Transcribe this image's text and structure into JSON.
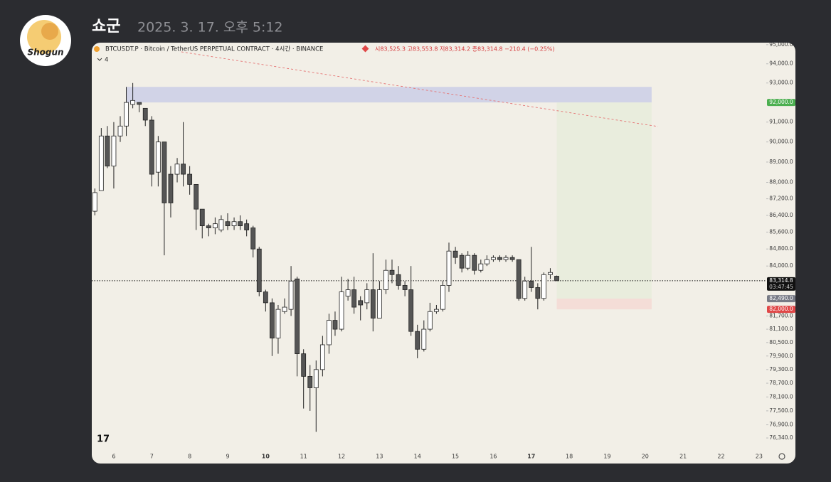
{
  "message": {
    "author": "쇼군",
    "timestamp": "2025. 3. 17. 오후 5:12",
    "avatar_label": "Shogun"
  },
  "chart_data": {
    "type": "candlestick",
    "header": "BTCUSDT.P · Bitcoin / TetherUS PERPETUAL CONTRACT · 4시간 · BINANCE",
    "header_ohlc": "시83,525.3 고83,553.8 저83,314.2 종83,314.8 −210.4 (−0.25%)",
    "indicator_count": "4",
    "x": [
      5.5,
      5.67,
      5.83,
      6,
      6.17,
      6.33,
      6.5,
      6.67,
      6.83,
      7,
      7.17,
      7.33,
      7.5,
      7.67,
      7.83,
      8,
      8.17,
      8.33,
      8.5,
      8.67,
      8.83,
      9,
      9.17,
      9.33,
      9.5,
      9.67,
      9.83,
      10,
      10.17,
      10.33,
      10.5,
      10.67,
      10.83,
      11,
      11.17,
      11.33,
      11.5,
      11.67,
      11.83,
      12,
      12.17,
      12.33,
      12.5,
      12.67,
      12.83,
      13,
      13.17,
      13.33,
      13.5,
      13.67,
      13.83,
      14,
      14.17,
      14.33,
      14.5,
      14.67,
      14.83,
      15,
      15.17,
      15.33,
      15.5,
      15.67,
      15.83,
      16,
      16.17,
      16.33,
      16.5,
      16.67,
      16.83,
      17,
      17.17,
      17.33,
      17.5,
      17.67
    ],
    "open": [
      86600,
      87600,
      90300,
      88800,
      90300,
      90800,
      91900,
      92000,
      91700,
      91100,
      88500,
      90000,
      88400,
      88400,
      88900,
      88400,
      87900,
      86700,
      85900,
      85800,
      85700,
      86100,
      85900,
      86100,
      86000,
      85800,
      84800,
      82800,
      82300,
      80700,
      81900,
      82000,
      83400,
      80000,
      79000,
      78500,
      79300,
      80400,
      81500,
      81100,
      82600,
      82900,
      82400,
      82300,
      82900,
      81600,
      82900,
      83800,
      83600,
      83100,
      82900,
      81000,
      80200,
      81100,
      81900,
      82000,
      83100,
      84700,
      84500,
      83900,
      84500,
      83800,
      84100,
      84300,
      84400,
      84300,
      84400,
      84300,
      82500,
      83300,
      83000,
      82500,
      83600,
      83525.3
    ],
    "high": [
      87700,
      90700,
      90800,
      91000,
      91300,
      92800,
      93000,
      92000,
      91700,
      91300,
      90300,
      90000,
      88800,
      89200,
      91000,
      88800,
      87900,
      86700,
      86000,
      86300,
      86400,
      86500,
      86300,
      86400,
      86200,
      85900,
      84900,
      82900,
      82500,
      82200,
      82500,
      84000,
      83500,
      80200,
      79500,
      79700,
      80800,
      81800,
      81900,
      83500,
      83400,
      83500,
      82600,
      83200,
      84600,
      83300,
      84300,
      84300,
      84000,
      83300,
      84000,
      81300,
      81500,
      82300,
      82200,
      83300,
      85100,
      84900,
      84600,
      84700,
      84600,
      84300,
      84500,
      84500,
      84500,
      84500,
      84500,
      84300,
      83500,
      84900,
      83200,
      83700,
      83900,
      83553.8
    ],
    "low": [
      86400,
      87600,
      88700,
      87700,
      90000,
      90300,
      91700,
      91500,
      90800,
      87800,
      87800,
      84500,
      86300,
      88000,
      87800,
      87400,
      85700,
      85300,
      85400,
      85500,
      85600,
      85700,
      85700,
      85700,
      85400,
      84400,
      82600,
      81900,
      79900,
      80000,
      81800,
      81700,
      79000,
      77600,
      77500,
      76600,
      79000,
      80000,
      80800,
      81000,
      82400,
      81800,
      81500,
      82000,
      81000,
      81600,
      82700,
      83200,
      82900,
      82600,
      80800,
      79800,
      80100,
      81000,
      81800,
      81900,
      82800,
      84100,
      83700,
      83800,
      83600,
      83700,
      84000,
      84200,
      84200,
      84200,
      84200,
      82400,
      82400,
      82800,
      82000,
      82400,
      83400,
      83314.2
    ],
    "close": [
      87500,
      90300,
      88800,
      90300,
      90800,
      92000,
      92100,
      91900,
      91100,
      88400,
      90000,
      87000,
      87000,
      88900,
      88400,
      87900,
      86700,
      85900,
      85800,
      86000,
      86200,
      85900,
      86100,
      85900,
      85700,
      84800,
      82800,
      82300,
      80700,
      82000,
      82100,
      83300,
      80000,
      79000,
      78500,
      79300,
      80400,
      81500,
      81100,
      82800,
      82900,
      82100,
      82200,
      82900,
      81600,
      82900,
      83800,
      83600,
      83100,
      82900,
      81000,
      80200,
      81100,
      81900,
      82000,
      83100,
      84700,
      84400,
      83900,
      84500,
      83800,
      84100,
      84300,
      84400,
      84300,
      84400,
      84300,
      82500,
      83300,
      83000,
      82500,
      83600,
      83700,
      83314.8
    ],
    "up_color": "#ffffff",
    "down_color": "#555555",
    "edge_color": "#222222",
    "log_scale": true,
    "xlim": [
      5.42,
      23.19
    ],
    "ylim": [
      75920,
      95110
    ],
    "xticks": [
      6,
      7,
      8,
      9,
      10,
      11,
      12,
      13,
      14,
      15,
      16,
      17,
      18,
      19,
      20,
      21,
      22,
      23
    ],
    "bold_xticks": [
      10,
      17
    ],
    "yticks": [
      {
        "value": 95000,
        "label": "95,000.0"
      },
      {
        "value": 94000,
        "label": "94,000.0"
      },
      {
        "value": 93000,
        "label": "93,000.0"
      },
      {
        "value": 91000,
        "label": "91,000.0"
      },
      {
        "value": 90000,
        "label": "90,000.0"
      },
      {
        "value": 89000,
        "label": "89,000.0"
      },
      {
        "value": 88000,
        "label": "88,000.0"
      },
      {
        "value": 87200,
        "label": "87,200.0"
      },
      {
        "value": 86400,
        "label": "86,400.0"
      },
      {
        "value": 85600,
        "label": "85,600.0"
      },
      {
        "value": 84800,
        "label": "84,800.0"
      },
      {
        "value": 84000,
        "label": "84,000.0"
      },
      {
        "value": 81700,
        "label": "81,700.0"
      },
      {
        "value": 81100,
        "label": "81,100.0"
      },
      {
        "value": 80500,
        "label": "80,500.0"
      },
      {
        "value": 79900,
        "label": "79,900.0"
      },
      {
        "value": 79300,
        "label": "79,300.0"
      },
      {
        "value": 78700,
        "label": "78,700.0"
      },
      {
        "value": 78100,
        "label": "78,100.0"
      },
      {
        "value": 77500,
        "label": "77,500.0"
      },
      {
        "value": 76900,
        "label": "76,900.0"
      },
      {
        "value": 76340,
        "label": "76,340.0"
      }
    ],
    "zones": [
      {
        "start": 6.34,
        "end": 20.17,
        "bottom": 92000,
        "top": 92800,
        "color": "#cbcee6"
      },
      {
        "start": 17.67,
        "end": 20.17,
        "bottom": 82490,
        "top": 92000,
        "color": "#e8ecda"
      },
      {
        "start": 17.67,
        "end": 20.17,
        "bottom": 82000,
        "top": 82490,
        "color": "#f4d9d4"
      }
    ],
    "axis_markers": [
      {
        "value": 92000,
        "label": "92,000.0",
        "color": "#4caf50"
      },
      {
        "value": 82490,
        "label": "82,490.0",
        "color": "#787b86"
      },
      {
        "value": 82000,
        "label": "82,000.0",
        "color": "#e04848"
      }
    ],
    "price_line": {
      "value": 83314.8,
      "label": "83,314.8",
      "countdown": "03:47:45",
      "color": "#111111"
    },
    "trendline": {
      "x": [
        7.78,
        20.34
      ],
      "y": [
        94625,
        90776
      ],
      "color": "#e57373"
    }
  }
}
